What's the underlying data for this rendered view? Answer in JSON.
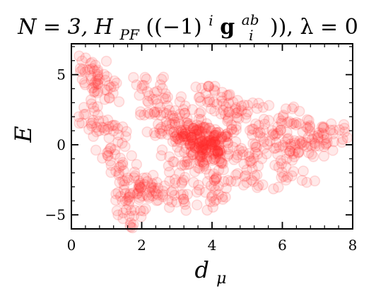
{
  "chart_data": {
    "type": "scatter",
    "title": {
      "prefix": "N = 3, H",
      "sub": "PF",
      "mid1": "((−1)",
      "sup_i": "i",
      "bold_g": "g",
      "sub_i": "i",
      "sup_ab": "ab",
      "mid2": ")), λ = 0"
    },
    "xlabel": {
      "main": "d",
      "sub": "μ"
    },
    "ylabel": "E",
    "xlim": [
      0,
      8
    ],
    "ylim": [
      -6,
      7.2
    ],
    "xticks": [
      0,
      2,
      4,
      6,
      8
    ],
    "yticks": [
      -5,
      0,
      5
    ],
    "xtick_labels": [
      "0",
      "2",
      "4",
      "6",
      "8"
    ],
    "ytick_labels": [
      "−5",
      "0",
      "5"
    ],
    "grid": false,
    "marker_color": "#ff2a2a",
    "marker_alpha": 0.1,
    "points_note_values": [
      [
        0.6,
        5.8
      ],
      [
        0.6,
        5.3
      ],
      [
        0.7,
        4.8
      ],
      [
        0.8,
        4.4
      ],
      [
        0.9,
        3.9
      ],
      [
        1.0,
        3.4
      ],
      [
        0.6,
        2.2
      ],
      [
        0.8,
        1.8
      ],
      [
        1.0,
        1.2
      ],
      [
        1.2,
        0.7
      ],
      [
        1.1,
        -0.2
      ],
      [
        1.3,
        -0.8
      ],
      [
        1.5,
        -1.5
      ],
      [
        1.6,
        -2.2
      ],
      [
        1.7,
        -3.0
      ],
      [
        1.6,
        -3.8
      ],
      [
        1.7,
        -4.5
      ],
      [
        1.7,
        -5.3
      ],
      [
        2.0,
        -4.0
      ],
      [
        2.1,
        -3.2
      ],
      [
        2.3,
        -2.8
      ],
      [
        2.5,
        -3.6
      ],
      [
        2.7,
        -3.0
      ],
      [
        2.2,
        4.4
      ],
      [
        2.3,
        3.6
      ],
      [
        2.4,
        2.8
      ],
      [
        2.6,
        2.2
      ],
      [
        2.8,
        1.7
      ],
      [
        3.0,
        1.2
      ],
      [
        3.2,
        0.7
      ],
      [
        3.4,
        0.3
      ],
      [
        3.6,
        0.0
      ],
      [
        3.8,
        -0.3
      ],
      [
        4.0,
        0.1
      ],
      [
        4.2,
        -0.6
      ],
      [
        3.9,
        -1.2
      ],
      [
        3.5,
        -1.8
      ],
      [
        3.8,
        -2.4
      ],
      [
        4.0,
        -3.6
      ],
      [
        3.6,
        -4.0
      ],
      [
        4.3,
        -2.6
      ],
      [
        4.1,
        3.5
      ],
      [
        3.9,
        3.6
      ],
      [
        4.3,
        2.9
      ],
      [
        4.5,
        2.3
      ],
      [
        4.7,
        1.8
      ],
      [
        5.0,
        1.3
      ],
      [
        5.3,
        0.9
      ],
      [
        5.6,
        0.5
      ],
      [
        5.2,
        -0.6
      ],
      [
        5.5,
        -1.1
      ],
      [
        5.8,
        0.1
      ],
      [
        6.1,
        -0.1
      ],
      [
        6.4,
        2.1
      ],
      [
        6.3,
        1.5
      ],
      [
        6.6,
        0.9
      ],
      [
        6.9,
        0.6
      ],
      [
        7.2,
        0.9
      ],
      [
        7.5,
        0.85
      ],
      [
        6.8,
        -0.2
      ],
      [
        7.1,
        -0.3
      ],
      [
        6.4,
        -0.7
      ],
      [
        6.5,
        -2.1
      ],
      [
        5.6,
        -2.6
      ],
      [
        5.9,
        2.2
      ],
      [
        3.0,
        -3.8
      ],
      [
        2.8,
        3.0
      ],
      [
        3.3,
        2.5
      ],
      [
        3.7,
        1.5
      ],
      [
        4.4,
        0.4
      ],
      [
        4.8,
        -0.2
      ],
      [
        2.5,
        1.0
      ],
      [
        2.9,
        -0.9
      ],
      [
        3.1,
        -2.1
      ],
      [
        4.6,
        -1.5
      ],
      [
        5.0,
        -2.2
      ],
      [
        4.9,
        3.2
      ]
    ]
  }
}
